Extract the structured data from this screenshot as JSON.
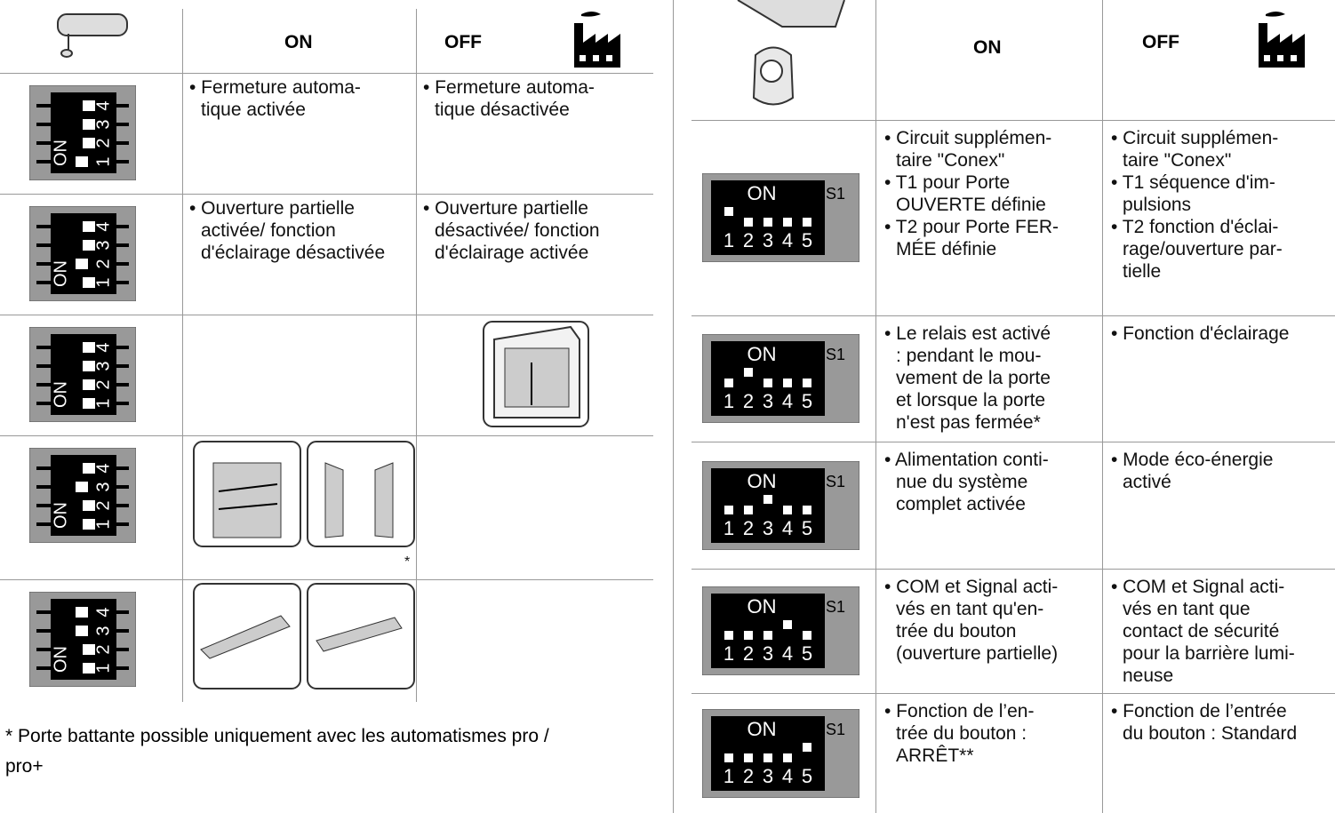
{
  "left_table": {
    "header": {
      "on": "ON",
      "off": "OFF"
    },
    "rows": [
      {
        "on": [
          "• Fermeture automa-\ntique activée"
        ],
        "off": [
          "• Fermeture automa-\ntique désactivée"
        ]
      },
      {
        "on": [
          "• Ouverture partielle\nactivée/ fonction\nd'éclairage désactivée"
        ],
        "off": [
          "• Ouverture partielle\ndésactivée/ fonction\nd'éclairage activée"
        ]
      },
      {},
      {
        "note": "*"
      },
      {}
    ],
    "footnote": "* Porte battante possible uniquement avec les automatismes pro /\npro+"
  },
  "right_table": {
    "header": {
      "on": "ON",
      "off": "OFF"
    },
    "rows": [
      {
        "on": [
          "• Circuit supplémen-\ntaire \"Conex\"",
          "• T1 pour Porte\nOUVERTE définie",
          "• T2 pour Porte FER-\nMÉE définie"
        ],
        "off": [
          "• Circuit supplémen-\ntaire \"Conex\"",
          "• T1 séquence d'im-\npulsions",
          "• T2 fonction d'éclai-\nrage/ouverture par-\ntielle"
        ]
      },
      {
        "on": [
          "• Le relais est activé\n: pendant le mou-\nvement de la porte\net lorsque la porte\nn'est pas fermée*"
        ],
        "off": [
          "• Fonction d'éclairage"
        ]
      },
      {
        "on": [
          "• Alimentation conti-\nnue du système\ncomplet activée"
        ],
        "off": [
          "• Mode éco-énergie\nactivé"
        ]
      },
      {
        "on": [
          "• COM et Signal acti-\nvés en tant qu'en-\ntrée du bouton\n(ouverture partielle)"
        ],
        "off": [
          "• COM et Signal acti-\nvés en tant que\ncontact de sécurité\npour la barrière lumi-\nneuse"
        ]
      },
      {
        "on": [
          "• Fonction de l’en-\ntrée du bouton :\nARRÊT**"
        ],
        "off": [
          "• Fonction de l’entrée\ndu bouton : Standard"
        ]
      }
    ]
  },
  "dip": {
    "on": "ON",
    "s1": "S1",
    "numbers": [
      "1",
      "2",
      "3",
      "4",
      "5"
    ]
  }
}
